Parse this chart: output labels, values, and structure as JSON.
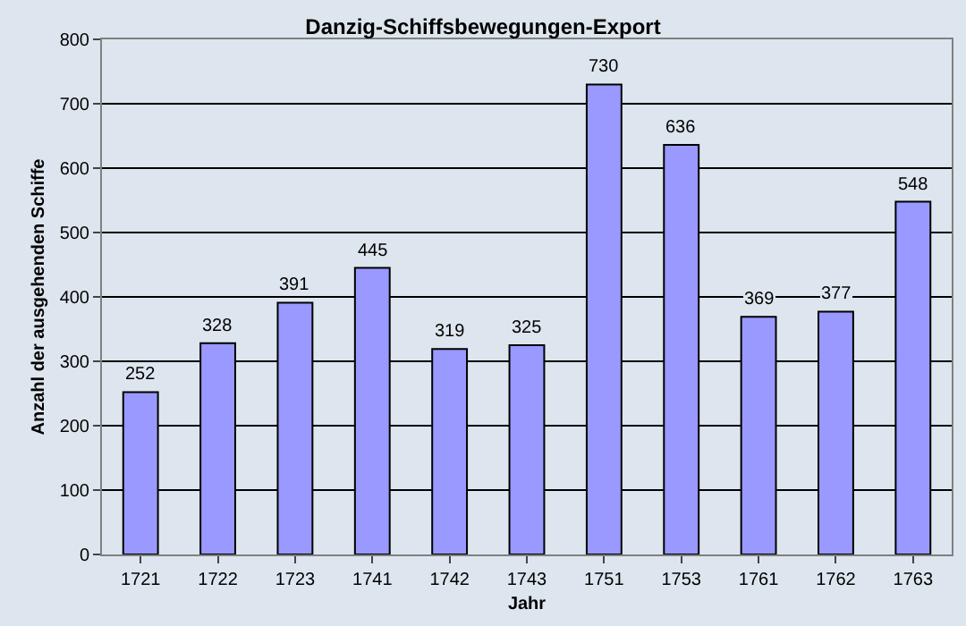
{
  "chart_data": {
    "type": "bar",
    "title": "Danzig-Schiffsbewegungen-Export",
    "xlabel": "Jahr",
    "ylabel": "Anzahl der ausgehenden Schiffe",
    "categories": [
      "1721",
      "1722",
      "1723",
      "1741",
      "1742",
      "1743",
      "1751",
      "1753",
      "1761",
      "1762",
      "1763"
    ],
    "values": [
      252,
      328,
      391,
      445,
      319,
      325,
      730,
      636,
      369,
      377,
      548
    ],
    "color": "#9999ff",
    "ylim": [
      0,
      800
    ],
    "yticks": [
      0,
      100,
      200,
      300,
      400,
      500,
      600,
      700,
      800
    ],
    "grid": "y",
    "data_labels": true
  }
}
